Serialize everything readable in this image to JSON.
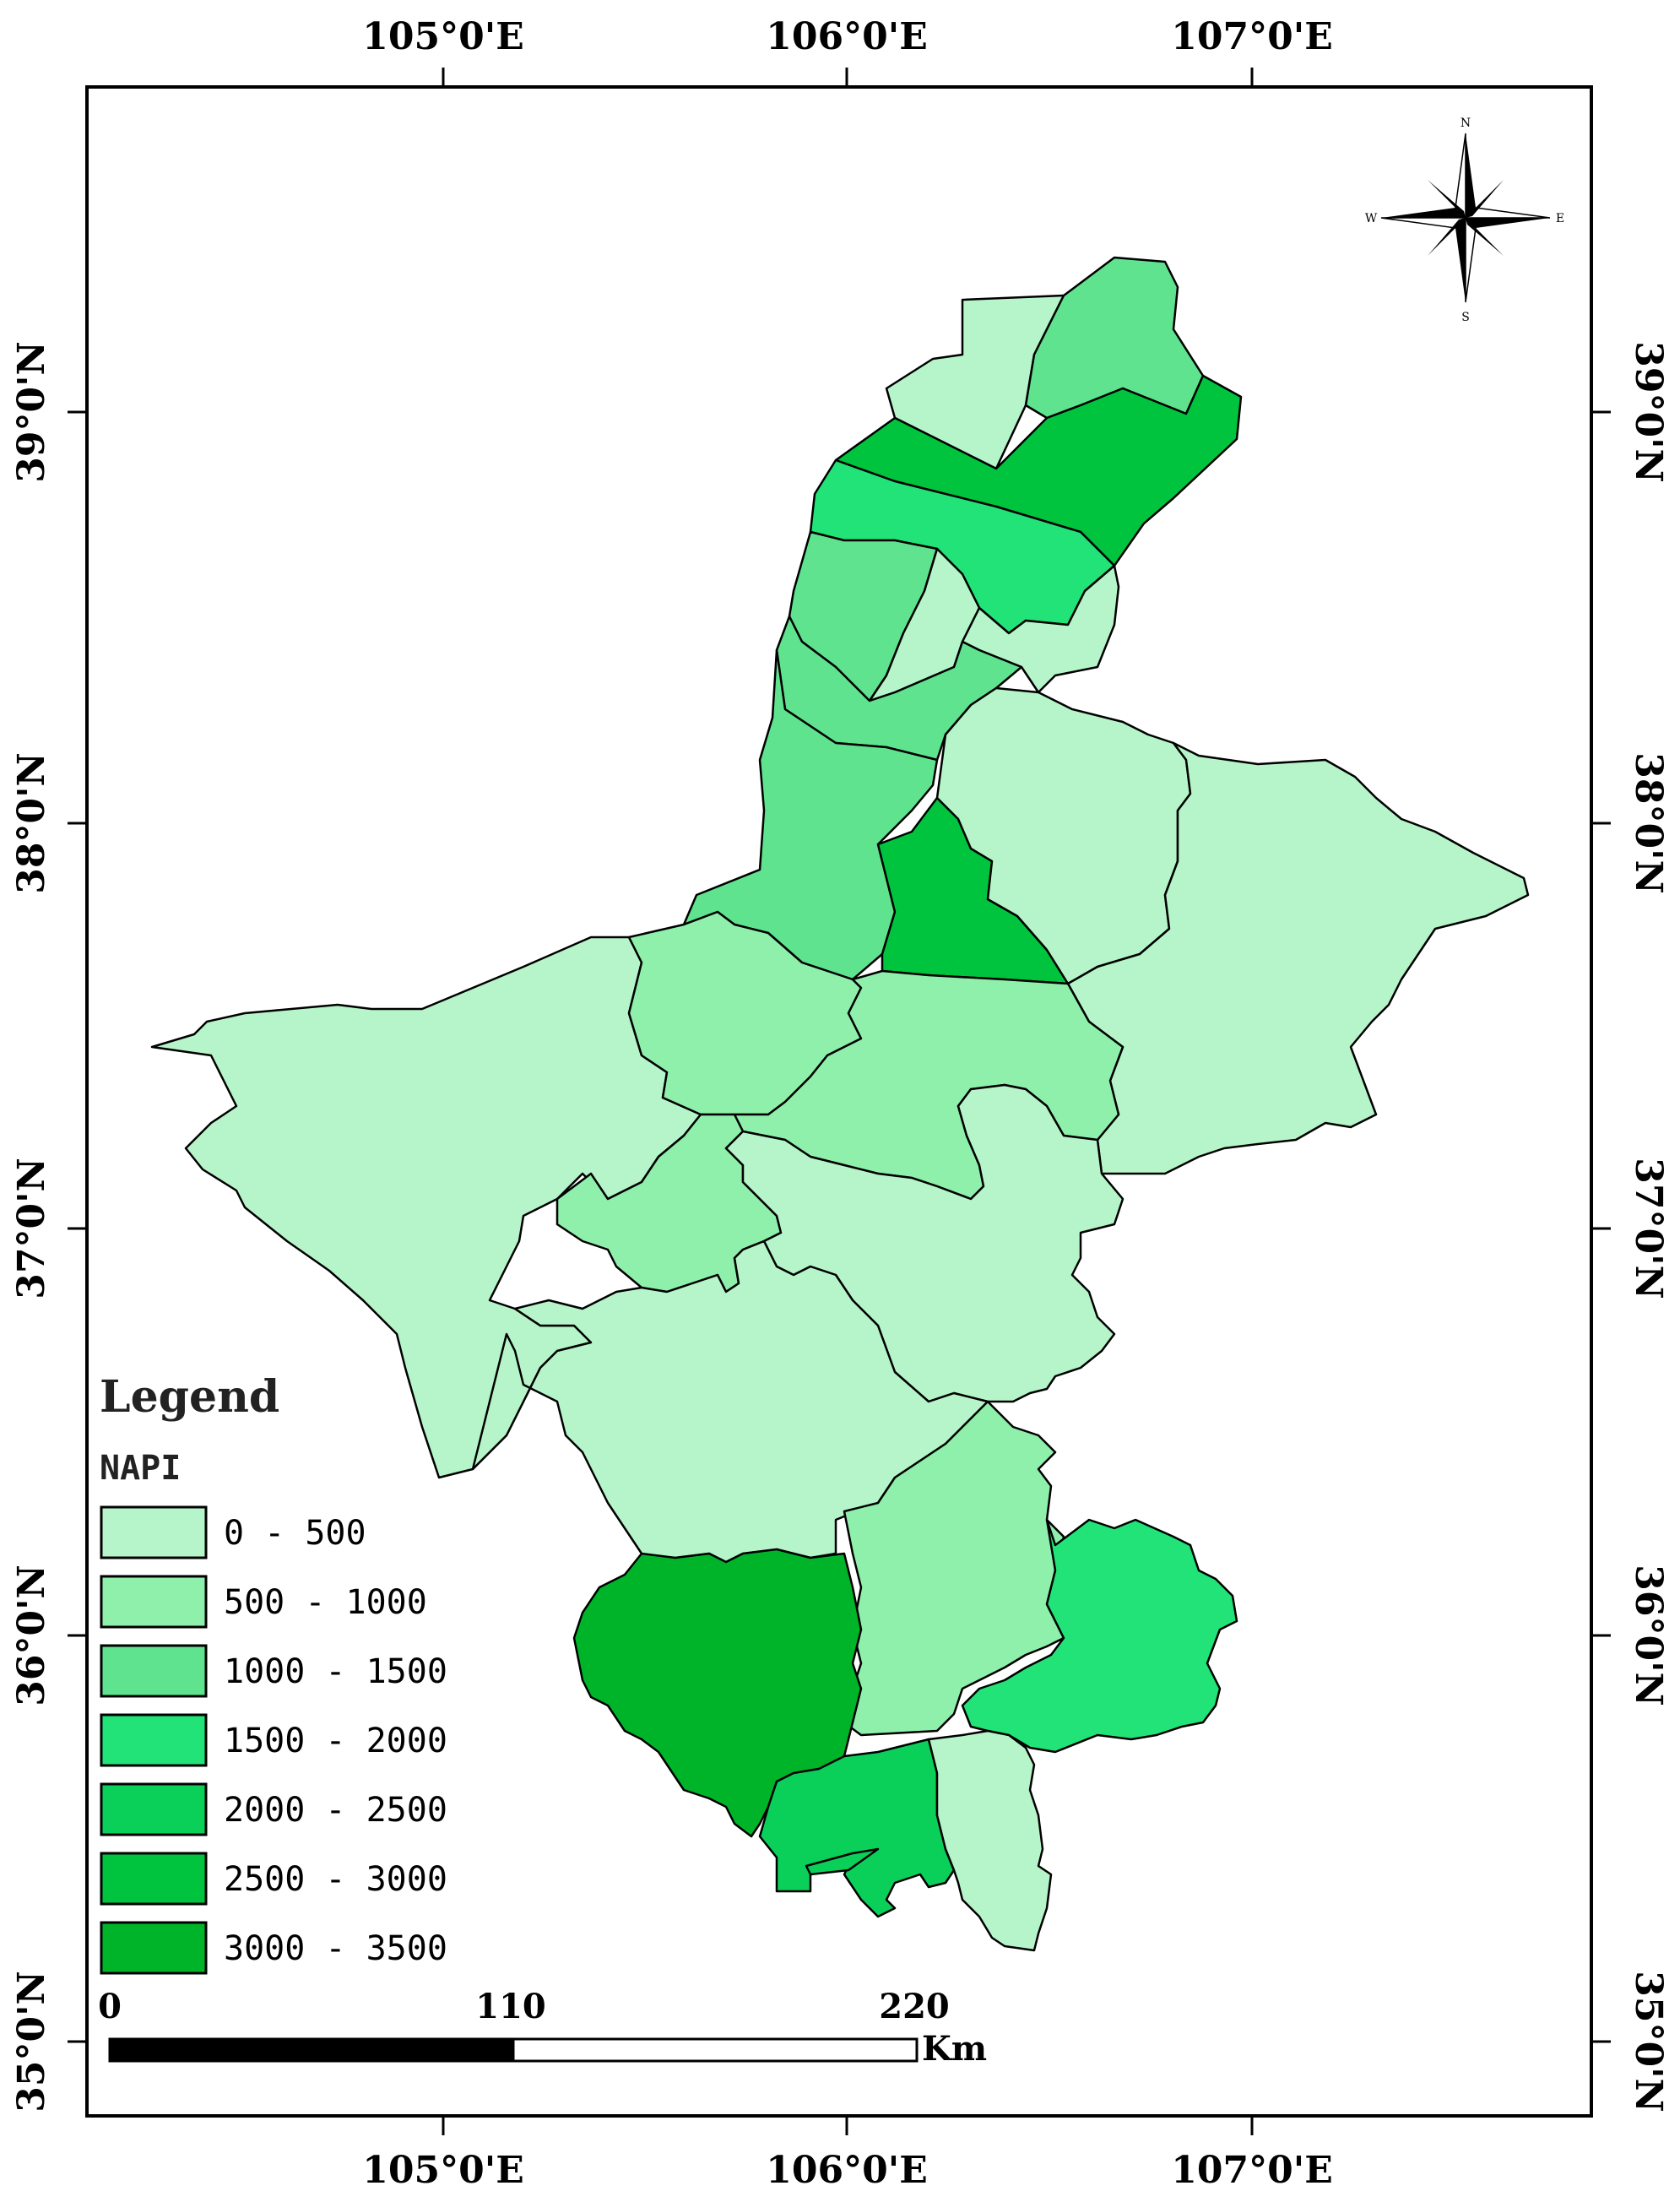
{
  "map": {
    "top_lon_labels": [
      "105°0'E",
      "106°0'E",
      "107°0'E"
    ],
    "bottom_lon_labels": [
      "105°0'E",
      "106°0'E",
      "107°0'E"
    ],
    "left_lat_labels": [
      "39°0'N",
      "38°0'N",
      "37°0'N",
      "36°0'N",
      "35°0'N"
    ],
    "right_lat_labels": [
      "39°0'N",
      "38°0'N",
      "37°0'N",
      "36°0'N",
      "35°0'N"
    ]
  },
  "compass": {
    "n": "N",
    "s": "S",
    "e": "E",
    "w": "W"
  },
  "legend": {
    "title": "Legend",
    "subtitle": "NAPI",
    "classes": [
      {
        "label": "0 - 500",
        "color": "#b6f5c9"
      },
      {
        "label": "500 - 1000",
        "color": "#8ef0ab"
      },
      {
        "label": "1000 - 1500",
        "color": "#5fe38e"
      },
      {
        "label": "1500 - 2000",
        "color": "#21e377"
      },
      {
        "label": "2000 - 2500",
        "color": "#0ad05a"
      },
      {
        "label": "2500 - 3000",
        "color": "#00c43e"
      },
      {
        "label": "3000 - 3500",
        "color": "#00b42a"
      }
    ]
  },
  "scale_bar": {
    "labels": [
      "0",
      "110",
      "220"
    ],
    "unit": "Km"
  }
}
